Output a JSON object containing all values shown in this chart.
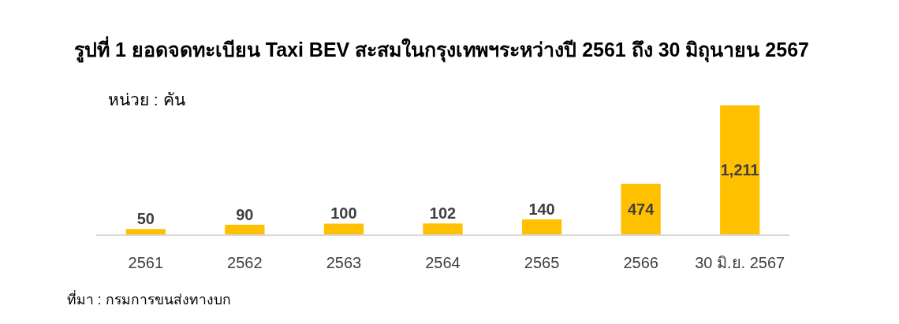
{
  "chart_data": {
    "type": "bar",
    "title": "รูปที่ 1 ยอดจดทะเบียน Taxi BEV สะสมในกรุงเทพฯระหว่างปี 2561 ถึง 30 มิถุนายน 2567",
    "ylabel": "หน่วย : คัน",
    "annotations": [
      "ที่มา : กรมการขนส่งทางบก"
    ],
    "categories": [
      "2561",
      "2562",
      "2563",
      "2564",
      "2565",
      "2566",
      "30 มิ.ย. 2567"
    ],
    "values": [
      50,
      90,
      100,
      102,
      140,
      474,
      1211
    ],
    "value_labels": [
      "50",
      "90",
      "100",
      "102",
      "140",
      "474",
      "1,211"
    ],
    "color": "#ffc000"
  }
}
